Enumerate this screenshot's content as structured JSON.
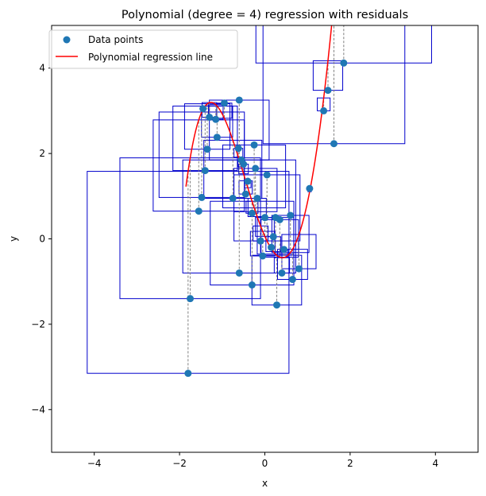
{
  "chart_data": {
    "type": "scatter",
    "title": "Polynomial (degree = 4) regression with residuals",
    "xlabel": "x",
    "ylabel": "y",
    "xlim": [
      -5,
      5
    ],
    "ylim": [
      -5,
      5
    ],
    "xticks": [
      -4,
      -2,
      0,
      2,
      4
    ],
    "yticks": [
      -4,
      -2,
      0,
      2,
      4
    ],
    "grid": false,
    "legend_position": "top-left",
    "colors": {
      "points": "#1f77b4",
      "regression": "#ff0000",
      "residual_squares": "#0000cc",
      "residual_lines": "#808080"
    },
    "series": [
      {
        "name": "Data points",
        "kind": "scatter",
        "points": [
          [
            -1.8,
            -3.15
          ],
          [
            -1.75,
            -1.4
          ],
          [
            -1.55,
            0.65
          ],
          [
            -1.48,
            0.97
          ],
          [
            -1.4,
            1.6
          ],
          [
            -1.45,
            3.05
          ],
          [
            -1.35,
            2.1
          ],
          [
            -1.3,
            2.85
          ],
          [
            -1.15,
            2.8
          ],
          [
            -1.12,
            2.38
          ],
          [
            -0.95,
            3.18
          ],
          [
            -0.6,
            3.25
          ],
          [
            -0.75,
            0.95
          ],
          [
            -0.62,
            2.12
          ],
          [
            -0.55,
            1.85
          ],
          [
            -0.5,
            1.75
          ],
          [
            -0.45,
            1.05
          ],
          [
            -0.4,
            1.35
          ],
          [
            -0.3,
            0.6
          ],
          [
            -0.25,
            2.2
          ],
          [
            -0.22,
            1.65
          ],
          [
            -0.18,
            0.95
          ],
          [
            -0.1,
            -0.05
          ],
          [
            -0.05,
            -0.4
          ],
          [
            0.0,
            0.5
          ],
          [
            0.05,
            1.5
          ],
          [
            0.15,
            -0.2
          ],
          [
            0.2,
            0.05
          ],
          [
            0.25,
            0.5
          ],
          [
            0.28,
            -1.55
          ],
          [
            0.35,
            0.45
          ],
          [
            0.4,
            -0.8
          ],
          [
            0.45,
            -0.25
          ],
          [
            0.6,
            0.55
          ],
          [
            0.65,
            -0.95
          ],
          [
            0.8,
            -0.7
          ],
          [
            -0.6,
            -0.8
          ],
          [
            -0.3,
            -1.08
          ],
          [
            1.05,
            1.18
          ],
          [
            1.38,
            3.0
          ],
          [
            1.48,
            3.48
          ],
          [
            1.62,
            2.23
          ],
          [
            1.85,
            4.12
          ]
        ]
      },
      {
        "name": "Polynomial regression line",
        "kind": "line",
        "coefficients_c0_to_c4": [
          0.059,
          -2.2435,
          2.0276,
          1.2095,
          -0.1935
        ],
        "x_range": [
          -1.85,
          1.85
        ]
      }
    ]
  },
  "legend": {
    "items": [
      {
        "label": "Data points"
      },
      {
        "label": "Polynomial regression line"
      }
    ]
  }
}
